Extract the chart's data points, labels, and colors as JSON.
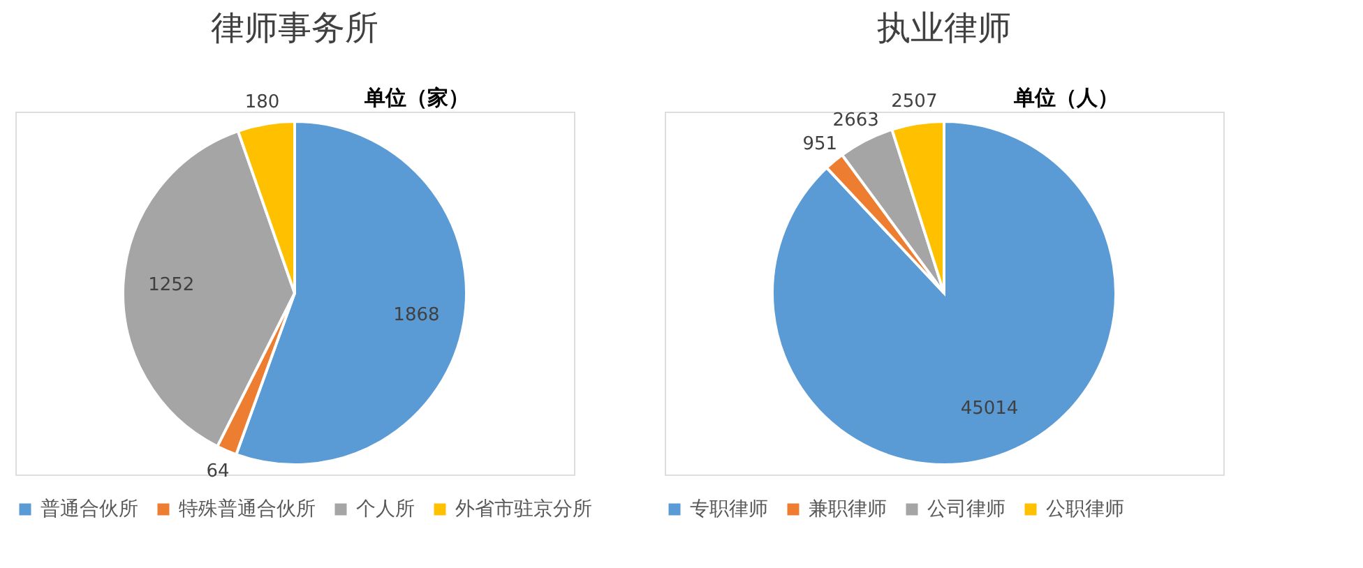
{
  "chart_data": [
    {
      "type": "pie",
      "title": "律师事务所",
      "annotations": [
        "单位（家）"
      ],
      "categories": [
        "普通合伙所",
        "特殊普通合伙所",
        "个人所",
        "外省市驻京分所"
      ],
      "values": [
        1868,
        64,
        1252,
        180
      ],
      "colors": [
        "#5b9bd5",
        "#ed7d31",
        "#a5a5a5",
        "#ffc000"
      ],
      "data_labels": true,
      "legend": "bottom"
    },
    {
      "type": "pie",
      "title": "执业律师",
      "annotations": [
        "单位（人）"
      ],
      "categories": [
        "专职律师",
        "兼职律师",
        "公司律师",
        "公职律师"
      ],
      "values": [
        45014,
        951,
        2663,
        2507
      ],
      "colors": [
        "#5b9bd5",
        "#ed7d31",
        "#a5a5a5",
        "#ffc000"
      ],
      "data_labels": true,
      "legend": "bottom"
    }
  ]
}
